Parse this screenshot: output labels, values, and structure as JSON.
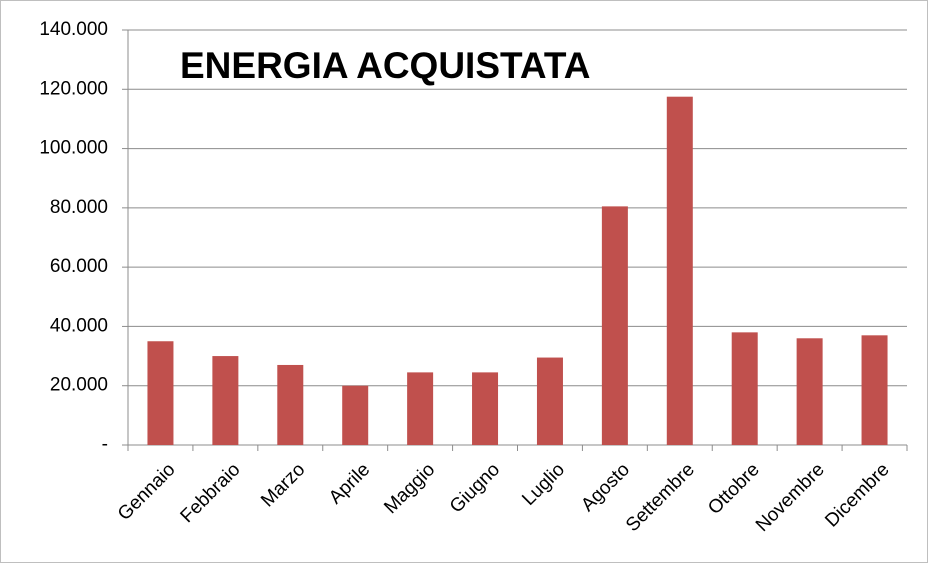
{
  "chart_data": {
    "type": "bar",
    "title": "ENERGIA ACQUISTATA",
    "categories": [
      "Gennaio",
      "Febbraio",
      "Marzo",
      "Aprile",
      "Maggio",
      "Giugno",
      "Luglio",
      "Agosto",
      "Settembre",
      "Ottobre",
      "Novembre",
      "Dicembre"
    ],
    "values": [
      35000,
      30000,
      27000,
      20000,
      24500,
      24500,
      29500,
      80500,
      117500,
      38000,
      36000,
      37000
    ],
    "color": "#c0504d",
    "ylim": [
      0,
      140000
    ],
    "yticks": [
      {
        "value": 0,
        "label": "-"
      },
      {
        "value": 20000,
        "label": "20.000"
      },
      {
        "value": 40000,
        "label": "40.000"
      },
      {
        "value": 60000,
        "label": "60.000"
      },
      {
        "value": 80000,
        "label": "80.000"
      },
      {
        "value": 100000,
        "label": "100.000"
      },
      {
        "value": 120000,
        "label": "120.000"
      },
      {
        "value": 140000,
        "label": "140.000"
      }
    ],
    "grid": true
  }
}
